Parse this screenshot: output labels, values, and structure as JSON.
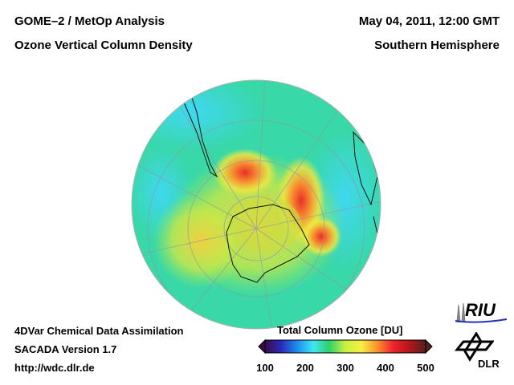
{
  "header": {
    "title_line1": "GOME–2 / MetOp Analysis",
    "title_line2": "Ozone Vertical Column Density",
    "date": "May 04, 2011, 12:00 GMT",
    "region": "Southern Hemisphere"
  },
  "footer": {
    "line1": "4DVar Chemical Data Assimilation",
    "line2": "SACADA Version 1.7",
    "line3": "http://wdc.dlr.de"
  },
  "colorbar": {
    "title": "Total Column Ozone [DU]",
    "ticks": [
      "100",
      "200",
      "300",
      "400",
      "500"
    ],
    "range": [
      100,
      500
    ],
    "colors": [
      "#3a0a4a",
      "#2a2ab8",
      "#1e8cf0",
      "#3fe6f0",
      "#2fd06a",
      "#c8f040",
      "#f8f040",
      "#f89030",
      "#f02030",
      "#b01818",
      "#502020"
    ]
  },
  "logos": {
    "riu": "RIU",
    "dlr": "DLR"
  }
}
